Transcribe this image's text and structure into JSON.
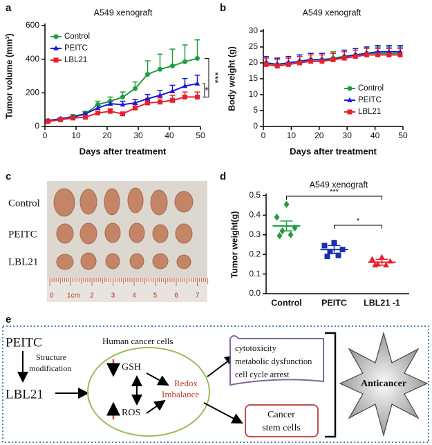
{
  "chart_data": [
    {
      "type": "line",
      "panel": "a",
      "title": "A549 xenograft",
      "xlabel": "Days after treatment",
      "ylabel": "Tumor volume (mm³)",
      "x": [
        1,
        5,
        9,
        13,
        17,
        21,
        25,
        29,
        33,
        37,
        41,
        45,
        49
      ],
      "xlim": [
        0,
        50
      ],
      "xticks": [
        0,
        10,
        20,
        30,
        40,
        50
      ],
      "ylim": [
        0,
        600
      ],
      "yticks": [
        0,
        200,
        400,
        600
      ],
      "legend": "upper left",
      "annotations": [
        "***",
        "*"
      ],
      "series": [
        {
          "name": "Control",
          "color": "#1e9e3e",
          "marker": "circle",
          "values": [
            35,
            45,
            60,
            75,
            130,
            150,
            175,
            225,
            310,
            340,
            360,
            385,
            405
          ],
          "errors": [
            5,
            8,
            10,
            15,
            20,
            25,
            30,
            40,
            80,
            90,
            100,
            100,
            110
          ]
        },
        {
          "name": "PEITC",
          "color": "#1a1adb",
          "marker": "triangle",
          "values": [
            35,
            45,
            55,
            75,
            110,
            135,
            130,
            140,
            165,
            185,
            210,
            240,
            255
          ],
          "errors": [
            5,
            5,
            8,
            10,
            15,
            15,
            20,
            20,
            25,
            30,
            35,
            45,
            50
          ]
        },
        {
          "name": "LBL21",
          "color": "#e8202a",
          "marker": "square",
          "values": [
            30,
            40,
            50,
            55,
            80,
            90,
            75,
            110,
            140,
            145,
            155,
            175,
            175
          ],
          "errors": [
            5,
            5,
            8,
            10,
            12,
            15,
            10,
            20,
            25,
            25,
            30,
            30,
            30
          ]
        }
      ]
    },
    {
      "type": "line",
      "panel": "b",
      "title": "A549 xenograft",
      "xlabel": "Days after treatment",
      "ylabel": "Body weight (g)",
      "x": [
        1,
        5,
        9,
        13,
        17,
        21,
        25,
        29,
        33,
        37,
        41,
        45,
        49
      ],
      "xlim": [
        0,
        50
      ],
      "xticks": [
        0,
        10,
        20,
        30,
        40,
        50
      ],
      "ylim": [
        0,
        30
      ],
      "yticks": [
        0,
        5,
        10,
        15,
        20,
        25,
        30
      ],
      "legend": "lower right",
      "series": [
        {
          "name": "Control",
          "color": "#1e9e3e",
          "marker": "circle",
          "values": [
            20,
            19.5,
            20,
            20.5,
            21,
            21,
            21.5,
            22,
            22.5,
            23,
            23,
            23,
            23
          ],
          "errors": [
            2,
            2,
            2,
            2,
            2,
            2,
            2,
            2,
            2,
            2,
            2,
            2,
            2
          ]
        },
        {
          "name": "PEITC",
          "color": "#1a1adb",
          "marker": "triangle",
          "values": [
            20,
            19.5,
            20,
            20.5,
            21,
            21,
            21,
            22,
            22.5,
            23,
            23.5,
            23.5,
            23.5
          ],
          "errors": [
            2,
            2,
            2,
            2,
            2,
            2,
            2,
            2,
            2,
            2,
            2,
            2,
            2
          ]
        },
        {
          "name": "LBL21",
          "color": "#e8202a",
          "marker": "square",
          "values": [
            19.5,
            19,
            19.5,
            20,
            20.5,
            20.5,
            21,
            21.5,
            22,
            22.5,
            22.5,
            22.5,
            22.5
          ],
          "errors": [
            2,
            2,
            2,
            2,
            2,
            2,
            2,
            2,
            2,
            2,
            2,
            2,
            2
          ]
        }
      ]
    },
    {
      "type": "dot",
      "panel": "d",
      "title": "A549 xenograft",
      "ylabel": "Tumor weight(g)",
      "categories": [
        "Control",
        "PEITC",
        "LBL21 -1"
      ],
      "colors": [
        "#1e9e3e",
        "#1a2fb0",
        "#e8202a"
      ],
      "markers": [
        "diamond",
        "square",
        "triangle"
      ],
      "points": [
        [
          0.455,
          0.39,
          0.335,
          0.32,
          0.3,
          0.295
        ],
        [
          0.26,
          0.245,
          0.225,
          0.215,
          0.195,
          0.19
        ],
        [
          0.185,
          0.175,
          0.165,
          0.15,
          0.145,
          0.145
        ]
      ],
      "means": [
        0.345,
        0.225,
        0.16
      ],
      "errors": [
        0.025,
        0.02,
        0.015
      ],
      "ylim": [
        0,
        0.5
      ],
      "yticks": [
        {
          "value": 0,
          "label": "0.0"
        },
        0.1,
        0.2,
        0.3,
        0.4,
        0.5
      ],
      "annotations": [
        "***",
        "*"
      ]
    }
  ],
  "photo": {
    "panel": "c",
    "rows": [
      "Control",
      "PEITC",
      "LBL21"
    ],
    "ruler": [
      "0",
      "1cm",
      "2",
      "3",
      "4",
      "5",
      "6",
      "7"
    ]
  },
  "diagram": {
    "panel": "e",
    "start": "PEITC",
    "step": [
      "Structure",
      "modification"
    ],
    "product": "LBL21",
    "cell": "Human cancer cells",
    "gsh": "GSH",
    "ros": "ROS",
    "redox": [
      "Redox",
      "Imbalance"
    ],
    "effects": [
      "cytotoxicity",
      "metabolic dysfunction",
      "cell cycle  arrest"
    ],
    "stem": [
      "Cancer",
      "stem cells"
    ],
    "result": "Anticancer"
  }
}
